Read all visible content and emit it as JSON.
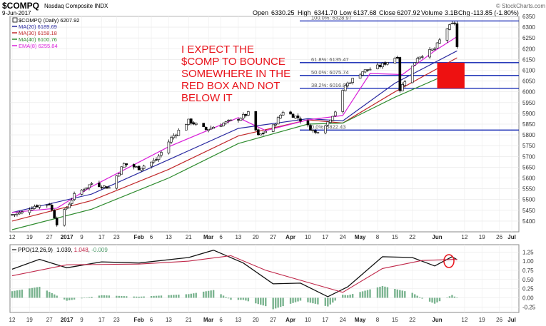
{
  "header": {
    "title": "$COMPQ",
    "subtitle": "Nasdaq Composite INDX",
    "date": "9-Jun-2017",
    "open_label": "Open",
    "open": "6330.25",
    "high_label": "High",
    "high": "6341.70",
    "low_label": "Low",
    "low": "6137.68",
    "close_label": "Close",
    "close": "6207.92",
    "volume_label": "Volume",
    "volume": "3.1B",
    "chg_label": "Chg",
    "chg": "-113.85 (-1.80%)",
    "watermark": "© StockCharts.com"
  },
  "legend": [
    {
      "label": "$COMPQ (Daily) 6207.92",
      "color": "#000000"
    },
    {
      "label": "MA(20) 6189.69",
      "color": "#2a2aa0"
    },
    {
      "label": "MA(30) 6158.18",
      "color": "#c0282a"
    },
    {
      "label": "MA(40) 6100.76",
      "color": "#2e8b2e"
    },
    {
      "label": "EMA(8) 6255.84",
      "color": "#d91fd9"
    }
  ],
  "annotation_lines": [
    "I EXPECT THE",
    "$COMP TO BOUNCE",
    "SOMEWHERE IN THE",
    "RED BOX AND NOT",
    "BELOW IT"
  ],
  "fib_labels": [
    "100.0%: 6328.97",
    "61.8%: 6135.47",
    "50.0%: 6075.74",
    "38.2%: 6016.00",
    "0.0%: 5822.43"
  ],
  "ppo_legend": {
    "name": "PPO(12,26,9)",
    "v1": "1.039",
    "v2": "1.048",
    "v3": "-0.009"
  },
  "x_labels": [
    "12",
    "19",
    "27",
    "2017",
    "9",
    "17",
    "23",
    "Feb",
    "6",
    "13",
    "21",
    "Mar",
    "6",
    "13",
    "20",
    "27",
    "Apr",
    "10",
    "17",
    "24",
    "May",
    "8",
    "15",
    "22",
    "Jun",
    "12",
    "19",
    "26",
    "Jul"
  ],
  "colors": {
    "ma20": "#2a2aa0",
    "ma30": "#c0282a",
    "ma40": "#2e8b2e",
    "ema8": "#d91fd9",
    "fib": "#0a1fb0",
    "box": "#ee1111",
    "ppo": "#111111",
    "signal": "#c0284a",
    "hist": "#4f9b6b"
  },
  "chart_data": [
    {
      "type": "line",
      "title": "$COMPQ",
      "subtitle": "Nasdaq Composite INDX",
      "ylim": [
        5350,
        6350
      ],
      "y_ticks": [
        5400,
        5450,
        5500,
        5550,
        5600,
        5650,
        5700,
        5750,
        5800,
        5850,
        5900,
        5950,
        6000,
        6050,
        6100,
        6150,
        6200,
        6250,
        6300,
        6350
      ],
      "x_ticks": [
        "12",
        "19",
        "27",
        "2017",
        "9",
        "17",
        "23",
        "Feb",
        "6",
        "13",
        "21",
        "Mar",
        "6",
        "13",
        "20",
        "27",
        "Apr",
        "10",
        "17",
        "24",
        "May",
        "8",
        "15",
        "22",
        "Jun",
        "12",
        "19",
        "26",
        "Jul"
      ],
      "x_domain": [
        "2016-12-12",
        "2017-07-03"
      ],
      "price_anchors": [
        [
          "2016-12-12",
          5430
        ],
        [
          "2016-12-16",
          5440
        ],
        [
          "2016-12-21",
          5470
        ],
        [
          "2016-12-27",
          5480
        ],
        [
          "2016-12-30",
          5390
        ],
        [
          "2017-01-06",
          5520
        ],
        [
          "2017-01-13",
          5575
        ],
        [
          "2017-01-20",
          5555
        ],
        [
          "2017-01-26",
          5665
        ],
        [
          "2017-02-01",
          5645
        ],
        [
          "2017-02-08",
          5685
        ],
        [
          "2017-02-14",
          5785
        ],
        [
          "2017-02-21",
          5865
        ],
        [
          "2017-02-28",
          5825
        ],
        [
          "2017-03-06",
          5850
        ],
        [
          "2017-03-13",
          5875
        ],
        [
          "2017-03-17",
          5900
        ],
        [
          "2017-03-21",
          5795
        ],
        [
          "2017-03-27",
          5840
        ],
        [
          "2017-03-31",
          5910
        ],
        [
          "2017-04-06",
          5880
        ],
        [
          "2017-04-13",
          5810
        ],
        [
          "2017-04-18",
          5860
        ],
        [
          "2017-04-21",
          5910
        ],
        [
          "2017-04-25",
          6030
        ],
        [
          "2017-05-02",
          6095
        ],
        [
          "2017-05-09",
          6120
        ],
        [
          "2017-05-16",
          6165
        ],
        [
          "2017-05-17",
          6010
        ],
        [
          "2017-05-24",
          6160
        ],
        [
          "2017-05-31",
          6200
        ],
        [
          "2017-06-05",
          6295
        ],
        [
          "2017-06-08",
          6321
        ],
        [
          "2017-06-09",
          6208
        ]
      ],
      "series": [
        {
          "name": "MA(20)",
          "values": [
            [
              "2016-12-12",
              5440
            ],
            [
              "2017-01-13",
              5525
            ],
            [
              "2017-02-13",
              5685
            ],
            [
              "2017-03-13",
              5830
            ],
            [
              "2017-04-10",
              5875
            ],
            [
              "2017-04-24",
              5865
            ],
            [
              "2017-05-15",
              6040
            ],
            [
              "2017-06-09",
              6190
            ]
          ]
        },
        {
          "name": "MA(30)",
          "values": [
            [
              "2016-12-12",
              5400
            ],
            [
              "2017-01-13",
              5495
            ],
            [
              "2017-02-13",
              5640
            ],
            [
              "2017-03-13",
              5795
            ],
            [
              "2017-04-10",
              5870
            ],
            [
              "2017-04-24",
              5855
            ],
            [
              "2017-05-15",
              6000
            ],
            [
              "2017-06-09",
              6158
            ]
          ]
        },
        {
          "name": "MA(40)",
          "values": [
            [
              "2016-12-12",
              5360
            ],
            [
              "2017-01-13",
              5455
            ],
            [
              "2017-02-13",
              5600
            ],
            [
              "2017-03-13",
              5760
            ],
            [
              "2017-04-10",
              5850
            ],
            [
              "2017-04-24",
              5855
            ],
            [
              "2017-05-15",
              5975
            ],
            [
              "2017-06-09",
              6101
            ]
          ]
        },
        {
          "name": "EMA(8)",
          "values": [
            [
              "2016-12-12",
              5440
            ],
            [
              "2016-12-30",
              5460
            ],
            [
              "2017-01-13",
              5560
            ],
            [
              "2017-02-13",
              5745
            ],
            [
              "2017-03-13",
              5880
            ],
            [
              "2017-03-24",
              5820
            ],
            [
              "2017-04-10",
              5870
            ],
            [
              "2017-04-24",
              5890
            ],
            [
              "2017-05-05",
              6085
            ],
            [
              "2017-05-18",
              6080
            ],
            [
              "2017-05-31",
              6190
            ],
            [
              "2017-06-09",
              6256
            ]
          ]
        }
      ],
      "fib_levels": [
        {
          "label": "100.0%",
          "value": 6328.97
        },
        {
          "label": "61.8%",
          "value": 6135.47
        },
        {
          "label": "50.0%",
          "value": 6075.74
        },
        {
          "label": "38.2%",
          "value": 6016.0
        },
        {
          "label": "0.0%",
          "value": 5822.43
        }
      ],
      "box": {
        "x0": "2017-06-01",
        "x1": "2017-06-12",
        "y0": 6016,
        "y1": 6135
      }
    },
    {
      "type": "line",
      "title": "PPO(12,26,9)",
      "ylim": [
        -0.4,
        1.45
      ],
      "y_ticks": [
        -0.25,
        0.0,
        0.25,
        0.5,
        0.75,
        1.0,
        1.25
      ],
      "series": [
        {
          "name": "PPO",
          "values": [
            [
              "2016-12-12",
              0.78
            ],
            [
              "2016-12-23",
              1.05
            ],
            [
              "2017-01-03",
              0.82
            ],
            [
              "2017-01-17",
              0.98
            ],
            [
              "2017-02-01",
              0.95
            ],
            [
              "2017-02-21",
              1.1
            ],
            [
              "2017-03-03",
              1.3
            ],
            [
              "2017-03-15",
              0.95
            ],
            [
              "2017-03-27",
              0.38
            ],
            [
              "2017-04-07",
              0.4
            ],
            [
              "2017-04-18",
              0.03
            ],
            [
              "2017-04-26",
              0.3
            ],
            [
              "2017-05-10",
              1.12
            ],
            [
              "2017-05-22",
              1.1
            ],
            [
              "2017-05-31",
              0.87
            ],
            [
              "2017-06-07",
              1.12
            ],
            [
              "2017-06-09",
              1.039
            ]
          ]
        },
        {
          "name": "Signal",
          "values": [
            [
              "2016-12-12",
              0.6
            ],
            [
              "2017-01-03",
              0.9
            ],
            [
              "2017-02-01",
              0.92
            ],
            [
              "2017-02-21",
              1.0
            ],
            [
              "2017-03-10",
              1.15
            ],
            [
              "2017-03-24",
              0.75
            ],
            [
              "2017-04-10",
              0.42
            ],
            [
              "2017-04-24",
              0.15
            ],
            [
              "2017-05-10",
              0.8
            ],
            [
              "2017-05-26",
              1.02
            ],
            [
              "2017-06-09",
              1.048
            ]
          ]
        }
      ]
    }
  ]
}
